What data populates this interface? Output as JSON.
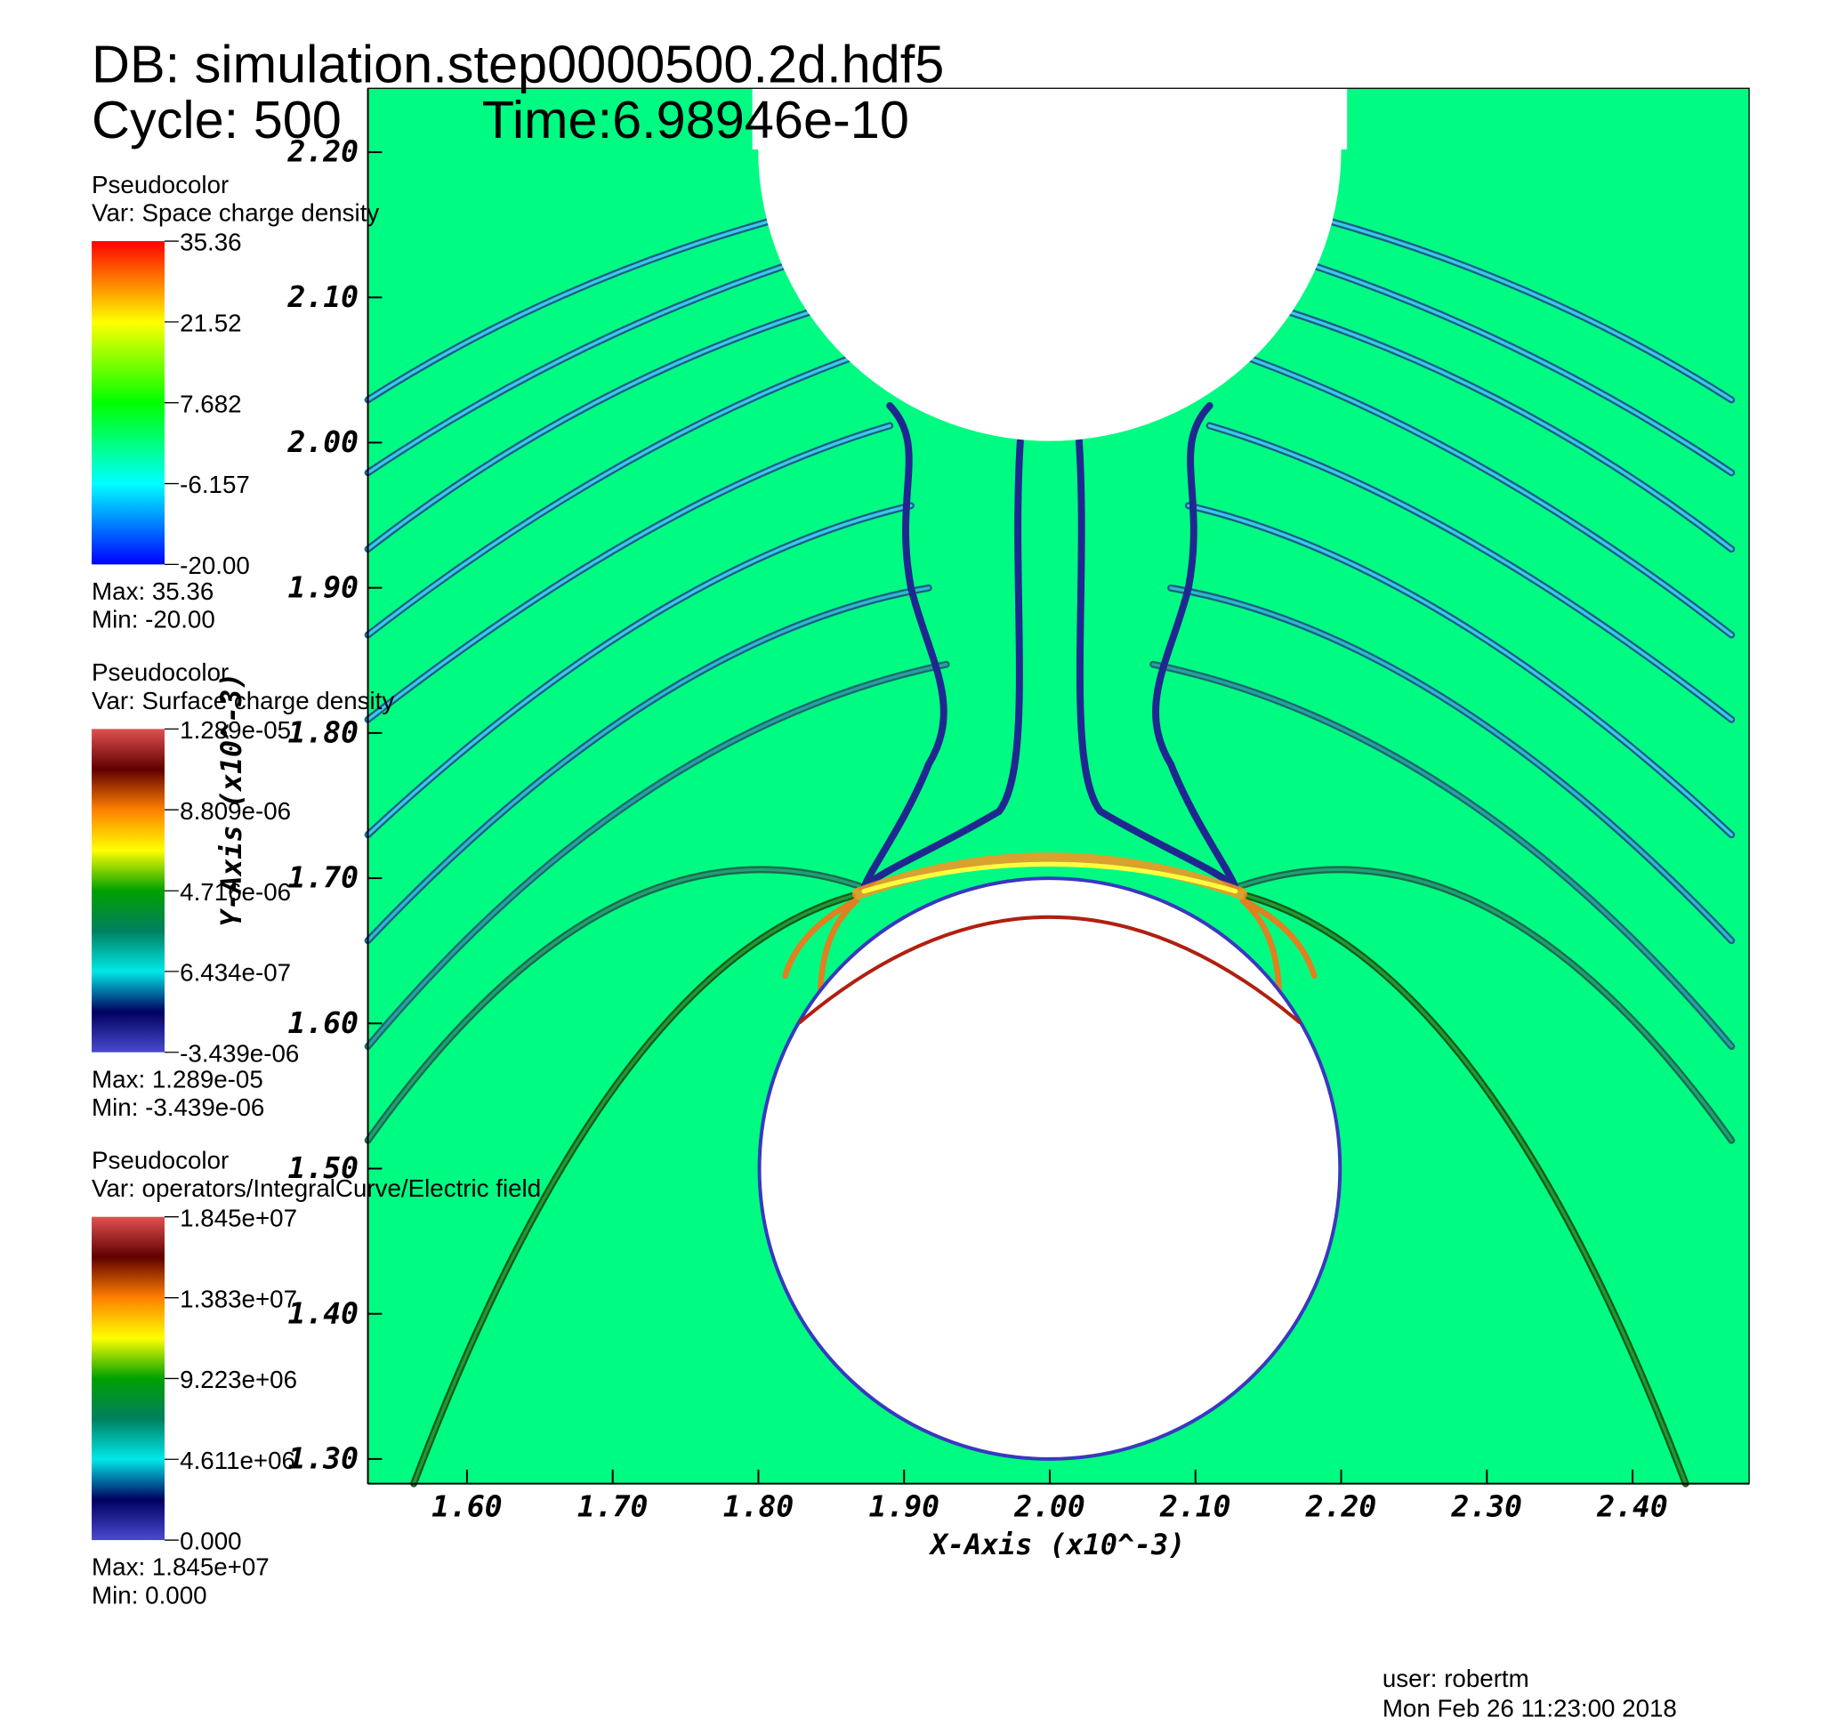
{
  "header": {
    "db": "DB: simulation.step0000500.2d.hdf5",
    "cycle": "Cycle: 500",
    "time": "Time:6.98946e-10"
  },
  "chart_data": {
    "type": "pseudocolor",
    "x_label": "X-Axis (x10^-3)",
    "y_label": "Y-Axis (x10^-3)",
    "xlim": [
      1.532,
      2.48
    ],
    "ylim": [
      1.283,
      2.244
    ],
    "xticks": [
      {
        "value": 1.6,
        "label": "1.60"
      },
      {
        "value": 1.7,
        "label": "1.70"
      },
      {
        "value": 1.8,
        "label": "1.80"
      },
      {
        "value": 1.9,
        "label": "1.90"
      },
      {
        "value": 2.0,
        "label": "2.00"
      },
      {
        "value": 2.1,
        "label": "2.10"
      },
      {
        "value": 2.2,
        "label": "2.20"
      },
      {
        "value": 2.3,
        "label": "2.30"
      },
      {
        "value": 2.4,
        "label": "2.40"
      }
    ],
    "yticks": [
      {
        "value": 1.3,
        "label": "1.30"
      },
      {
        "value": 1.4,
        "label": "1.40"
      },
      {
        "value": 1.5,
        "label": "1.50"
      },
      {
        "value": 1.6,
        "label": "1.60"
      },
      {
        "value": 1.7,
        "label": "1.70"
      },
      {
        "value": 1.8,
        "label": "1.80"
      },
      {
        "value": 1.9,
        "label": "1.90"
      },
      {
        "value": 2.0,
        "label": "2.00"
      },
      {
        "value": 2.1,
        "label": "2.10"
      },
      {
        "value": 2.2,
        "label": "2.20"
      }
    ],
    "background": "#00fb82",
    "legends": [
      {
        "title": "Pseudocolor",
        "variable": "Var: Space charge density",
        "range": [
          -20,
          35.36
        ],
        "colors": [
          "#0000ff",
          "#00ffff",
          "#00ff00",
          "#ffff00",
          "#ff0000"
        ],
        "ticks": [
          35.36,
          21.52,
          7.682,
          -6.157,
          {
            "value": -20,
            "label": "-20.00"
          }
        ],
        "max": "Max:  35.36",
        "min": "Min: -20.00"
      },
      {
        "title": "Pseudocolor",
        "variable": "Var: Surface charge density",
        "range": [
          -3.439e-06,
          1.289e-05
        ],
        "colors": [
          "#4a4ad0",
          "#000060",
          "#00e8e8",
          "#008060",
          "#00a000",
          "#ffff00",
          "#ff8000",
          "#600000",
          "#e05050"
        ],
        "ticks": [
          {
            "value": 1.289e-05,
            "label": "1.289e-05"
          },
          {
            "value": 8.809e-06,
            "label": "8.809e-06"
          },
          {
            "value": 4.716e-06,
            "label": "4.716e-06"
          },
          {
            "value": 6.434e-07,
            "label": "6.434e-07"
          },
          {
            "value": -3.439e-06,
            "label": "-3.439e-06"
          }
        ],
        "max": "Max:  1.289e-05",
        "min": "Min: -3.439e-06"
      },
      {
        "title": "Pseudocolor",
        "variable": "Var: operators/IntegralCurve/Electric field",
        "range": [
          0,
          18450000
        ],
        "colors": [
          "#4a4ad0",
          "#000060",
          "#00e8e8",
          "#008060",
          "#00a000",
          "#ffff00",
          "#ff8000",
          "#600000",
          "#e05050"
        ],
        "ticks": [
          {
            "value": 18450000,
            "label": "1.845e+07"
          },
          {
            "value": 13830000,
            "label": "1.383e+07"
          },
          {
            "value": 9223000,
            "label": "9.223e+06"
          },
          {
            "value": 4611000,
            "label": "4.611e+06"
          },
          {
            "value": 0,
            "label": "0.000"
          }
        ],
        "max": "Max:  1.845e+07",
        "min": "Min:  0.000"
      }
    ]
  },
  "footer": {
    "user": "user: robertm",
    "date": "Mon Feb 26 11:23:00 2018"
  }
}
